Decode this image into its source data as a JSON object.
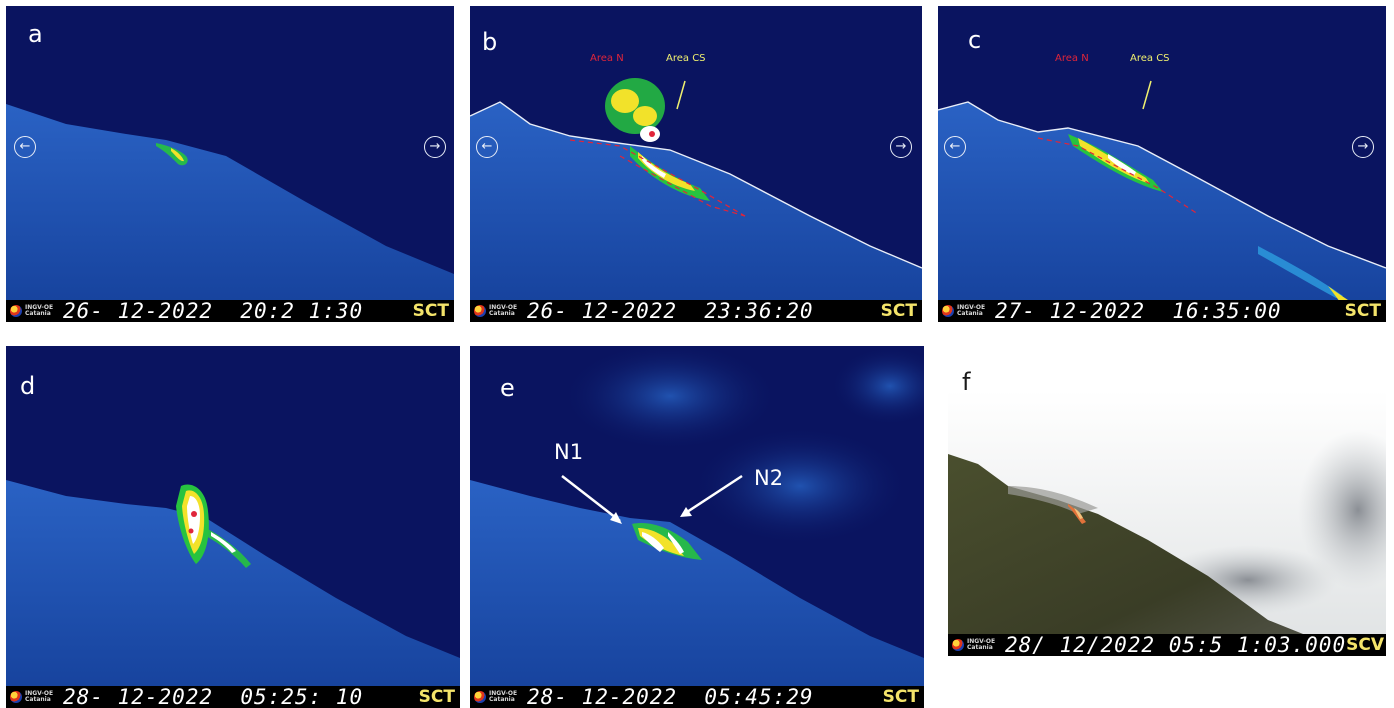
{
  "panels": [
    {
      "id": "a",
      "letter": "a",
      "date": "26- 12-2022",
      "time": "20:2 1:30",
      "code": "SCT",
      "institution": "INGV-OE Catania"
    },
    {
      "id": "b",
      "letter": "b",
      "date": "26- 12-2022",
      "time": "23:36:20",
      "code": "SCT",
      "institution": "INGV-OE Catania",
      "labels": {
        "area_n": "Area N",
        "area_cs": "Area CS"
      }
    },
    {
      "id": "c",
      "letter": "c",
      "date": "27- 12-2022",
      "time": "16:35:00",
      "code": "SCT",
      "institution": "INGV-OE Catania",
      "labels": {
        "area_n": "Area N",
        "area_cs": "Area CS"
      }
    },
    {
      "id": "d",
      "letter": "d",
      "date": "28- 12-2022",
      "time": "05:25: 10",
      "code": "SCT",
      "institution": "INGV-OE Catania"
    },
    {
      "id": "e",
      "letter": "e",
      "date": "28- 12-2022",
      "time": "05:45:29",
      "code": "SCT",
      "institution": "INGV-OE Catania",
      "labels": {
        "n1": "N1",
        "n2": "N2"
      }
    },
    {
      "id": "f",
      "letter": "f",
      "date": "28/ 12/2022",
      "time": "05:5 1:03.000",
      "code": "SCV",
      "institution": "INGV-OE Catania"
    }
  ],
  "nav_icons": {
    "left": "arrow-left-circle-icon",
    "right": "arrow-right-circle-icon"
  },
  "colors": {
    "thermal_sky": "#0a1460",
    "slope": "#1d4fae",
    "hot": "#ffffff",
    "warm": "#f2e22a",
    "cool": "#27c33f",
    "red_label": "#e0253a",
    "yellow_label": "#f0f070"
  }
}
